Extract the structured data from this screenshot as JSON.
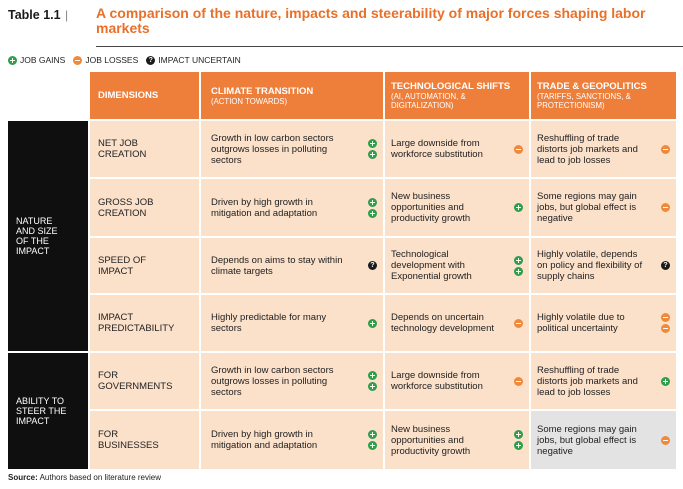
{
  "header": {
    "label": "Table 1.1",
    "separator": "|",
    "title": "A comparison of the nature, impacts and steerability of major forces shaping labor markets"
  },
  "legend": {
    "gains": "JOB GAINS",
    "losses": "JOB LOSSES",
    "uncertain": "IMPACT UNCERTAIN"
  },
  "columns": {
    "dimensions": "DIMENSIONS",
    "climate": {
      "title": "CLIMATE TRANSITION",
      "subtitle": "(ACTION TOWARDS)"
    },
    "tech": {
      "title": "TECHNOLOGICAL SHIFTS",
      "subtitle": "(AI, AUTOMATION, & DIGITALIZATION)"
    },
    "trade": {
      "title": "TRADE & GEOPOLITICS",
      "subtitle": "(TARIFFS, SANCTIONS, & PROTECTIONISM)"
    }
  },
  "groups": [
    {
      "label": "NATURE AND SIZE OF THE IMPACT"
    },
    {
      "label": "ABILITY TO STEER THE IMPACT"
    }
  ],
  "rows": [
    {
      "dimension": "NET JOB CREATION",
      "climate": {
        "text": "Growth in low carbon sectors outgrows losses in polluting sectors",
        "icons": [
          "plus",
          "plus"
        ]
      },
      "tech": {
        "text": "Large downside from workforce substitution",
        "icons": [
          "minus"
        ]
      },
      "trade": {
        "text": "Reshuffling of trade distorts job markets and lead to job losses",
        "icons": [
          "minus"
        ]
      }
    },
    {
      "dimension": "GROSS JOB CREATION",
      "climate": {
        "text": "Driven by high growth in mitigation and adaptation",
        "icons": [
          "plus",
          "plus"
        ]
      },
      "tech": {
        "text": "New business opportunities and productivity growth",
        "icons": [
          "plus"
        ]
      },
      "trade": {
        "text": "Some regions may gain jobs, but global effect is negative",
        "icons": [
          "minus"
        ]
      }
    },
    {
      "dimension": "SPEED OF IMPACT",
      "climate": {
        "text": "Depends on aims to stay within climate targets",
        "icons": [
          "q"
        ]
      },
      "tech": {
        "text": "Technological development with Exponential growth",
        "icons": [
          "plus",
          "plus"
        ]
      },
      "trade": {
        "text": "Highly volatile, depends on policy and flexibility of supply chains",
        "icons": [
          "q"
        ]
      }
    },
    {
      "dimension": "IMPACT PREDICTABILITY",
      "climate": {
        "text": "Highly predictable for many sectors",
        "icons": [
          "plus"
        ]
      },
      "tech": {
        "text": "Depends on uncertain technology development",
        "icons": [
          "minus"
        ]
      },
      "trade": {
        "text": "Highly volatile due to political uncertainty",
        "icons": [
          "minus",
          "minus"
        ]
      }
    },
    {
      "dimension": "FOR GOVERNMENTS",
      "climate": {
        "text": "Growth in low carbon sectors outgrows losses in polluting sectors",
        "icons": [
          "plus",
          "plus"
        ]
      },
      "tech": {
        "text": "Large downside from workforce substitution",
        "icons": [
          "minus"
        ]
      },
      "trade": {
        "text": "Reshuffling of trade distorts job markets and lead to job losses",
        "icons": [
          "plus"
        ]
      }
    },
    {
      "dimension": "FOR BUSINESSES",
      "climate": {
        "text": "Driven by high growth in mitigation and adaptation",
        "icons": [
          "plus",
          "plus"
        ]
      },
      "tech": {
        "text": "New business opportunities and productivity growth",
        "icons": [
          "plus",
          "plus"
        ]
      },
      "trade": {
        "text": "Some regions may gain jobs, but global effect is negative",
        "icons": [
          "minus"
        ]
      }
    }
  ],
  "source": {
    "label": "Source:",
    "text": "Authors based on literature review"
  }
}
